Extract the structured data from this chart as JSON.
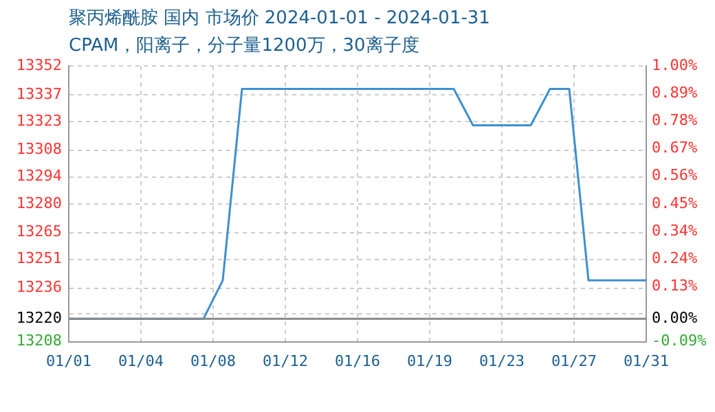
{
  "chart_data": {
    "type": "line",
    "title": "聚丙烯酰胺 国内 市场价 2024-01-01 - 2024-01-31",
    "subtitle": "CPAM，阳离子，分子量1200万，30离子度",
    "x": [
      "2024-01-01",
      "2024-01-08",
      "2024-01-09",
      "2024-01-10",
      "2024-01-21",
      "2024-01-22",
      "2024-01-25",
      "2024-01-26",
      "2024-01-27",
      "2024-01-28",
      "2024-01-31"
    ],
    "series": [
      {
        "color": "#3d8fd1",
        "values": [
          13220,
          13220,
          13240,
          13340,
          13340,
          13321,
          13321,
          13340,
          13340,
          13240,
          13240
        ]
      }
    ],
    "xlim": [
      "2024-01-01",
      "2024-01-31"
    ],
    "xticks": [
      {
        "value": "2024-01-01",
        "label": "01/01"
      },
      {
        "value": "2024-01-04T18:00",
        "label": "01/04"
      },
      {
        "value": "2024-01-08T12:00",
        "label": "01/08"
      },
      {
        "value": "2024-01-12T06:00",
        "label": "01/12"
      },
      {
        "value": "2024-01-16",
        "label": "01/16"
      },
      {
        "value": "2024-01-19T18:00",
        "label": "01/19"
      },
      {
        "value": "2024-01-23T12:00",
        "label": "01/23"
      },
      {
        "value": "2024-01-27T06:00",
        "label": "01/27"
      },
      {
        "value": "2024-01-31",
        "label": "01/31"
      }
    ],
    "ylim": [
      13208,
      13352
    ],
    "yticks": [
      13208,
      {
        "value": 13222.4,
        "label": null
      },
      13236,
      13251,
      13265,
      13280,
      13294,
      13308,
      13323,
      13337,
      13352
    ],
    "y2lim": [
      -0.0908,
      0.9985
    ],
    "y2ticks": [
      {
        "value": -0.0908,
        "label": "-0.09%"
      },
      {
        "value": 0,
        "label": "0.00%"
      },
      {
        "value": 0.1271,
        "label": "0.13%"
      },
      {
        "value": 0.236,
        "label": "0.24%"
      },
      {
        "value": 0.3449,
        "label": "0.34%"
      },
      {
        "value": 0.4539,
        "label": "0.45%"
      },
      {
        "value": 0.5628,
        "label": "0.56%"
      },
      {
        "value": 0.6717,
        "label": "0.67%"
      },
      {
        "value": 0.7806,
        "label": "0.78%"
      },
      {
        "value": 0.8896,
        "label": "0.89%"
      },
      {
        "value": 0.9985,
        "label": "1.00%"
      }
    ],
    "ref_lines": [
      {
        "axis": "y",
        "value": 13220,
        "label": "13220",
        "color": "#888888"
      }
    ],
    "grid": true,
    "legend": false,
    "marker": "none",
    "line_style": "solid"
  }
}
